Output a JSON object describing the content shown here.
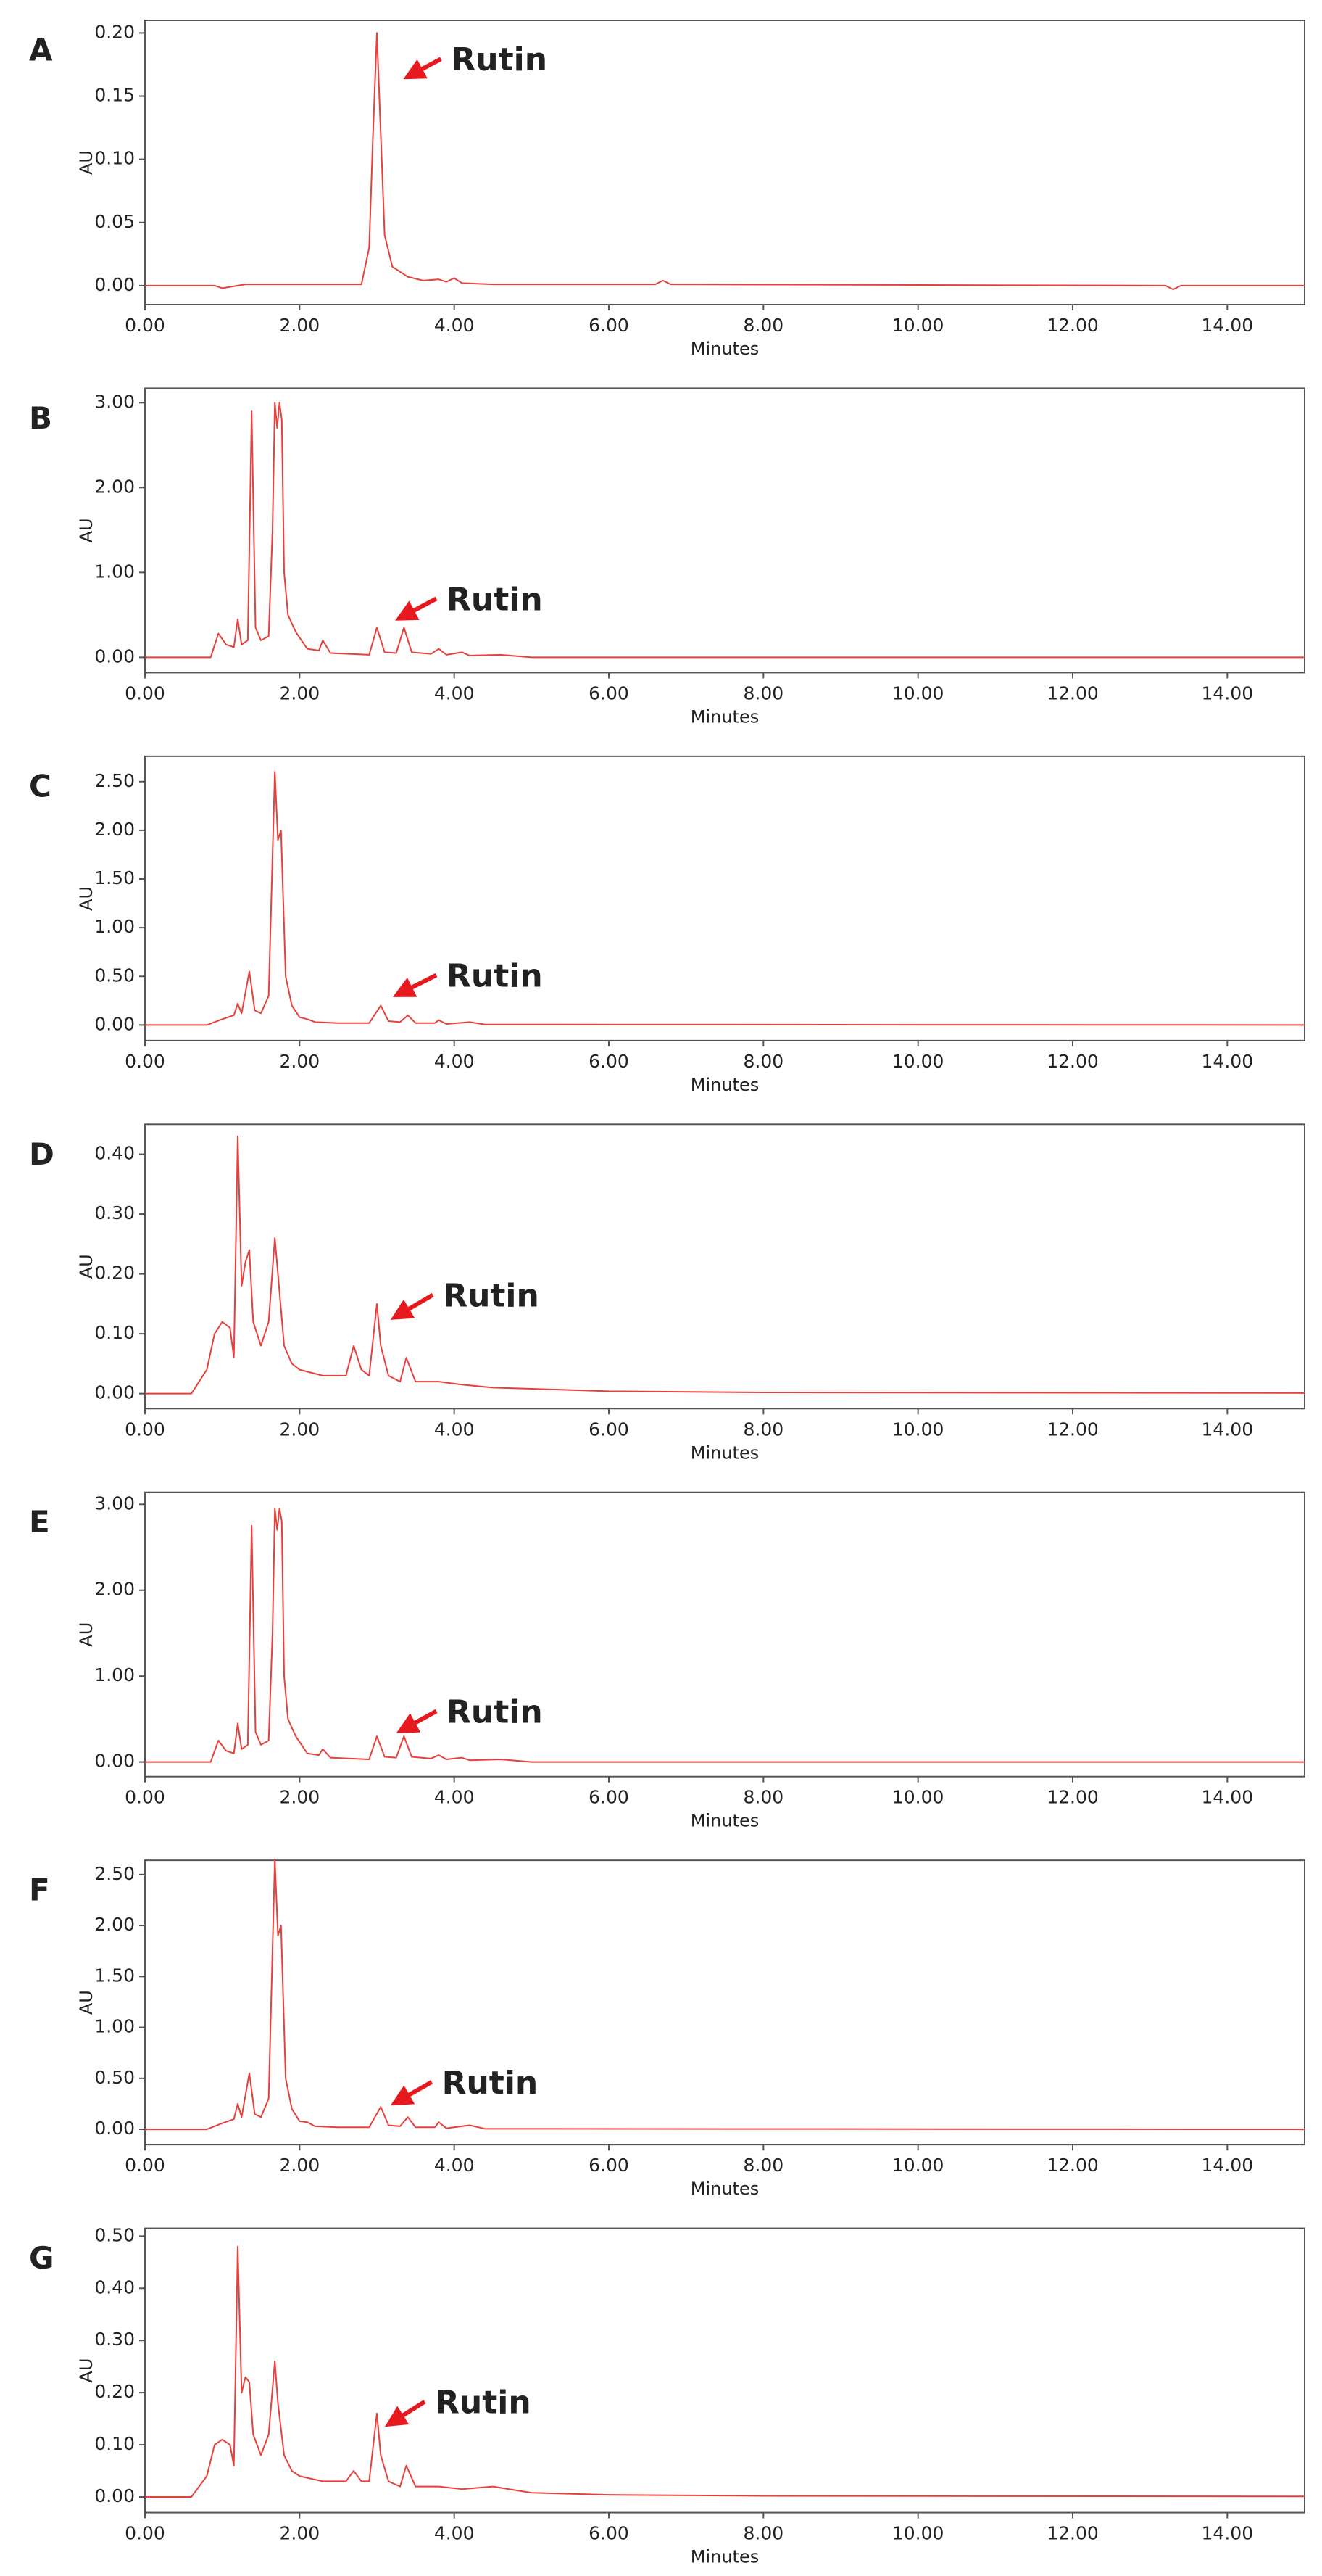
{
  "chart_data": [
    {
      "type": "line",
      "title": "A",
      "ylabel": "AU",
      "xlabel": "Minutes",
      "annotation": "Rutin",
      "color": "#e8413c",
      "xlim": [
        0,
        15
      ],
      "ylim": [
        -0.015,
        0.21
      ],
      "xticks": [
        {
          "value": 0,
          "label": "0.00"
        },
        {
          "value": 2,
          "label": "2.00"
        },
        {
          "value": 4,
          "label": "4.00"
        },
        {
          "value": 6,
          "label": "6.00"
        },
        {
          "value": 8,
          "label": "8.00"
        },
        {
          "value": 10,
          "label": "10.00"
        },
        {
          "value": 12,
          "label": "12.00"
        },
        {
          "value": 14,
          "label": "14.00"
        }
      ],
      "yticks": [
        {
          "value": 0,
          "label": "0.00"
        },
        {
          "value": 0.05,
          "label": "0.05"
        },
        {
          "value": 0.1,
          "label": "0.10"
        },
        {
          "value": 0.15,
          "label": "0.15"
        },
        {
          "value": 0.2,
          "label": "0.20"
        }
      ],
      "x": [
        0,
        0.9,
        1.0,
        1.2,
        1.3,
        2.8,
        2.9,
        2.95,
        3.0,
        3.05,
        3.1,
        3.2,
        3.4,
        3.6,
        3.8,
        3.9,
        4.0,
        4.1,
        4.5,
        6.6,
        6.7,
        6.8,
        13.2,
        13.3,
        13.4,
        15
      ],
      "values": [
        0,
        0,
        -0.002,
        0,
        0.001,
        0.001,
        0.03,
        0.12,
        0.2,
        0.12,
        0.04,
        0.015,
        0.007,
        0.004,
        0.005,
        0.003,
        0.006,
        0.002,
        0.001,
        0.001,
        0.004,
        0.001,
        0,
        -0.003,
        0,
        0
      ]
    },
    {
      "type": "line",
      "title": "B",
      "ylabel": "AU",
      "xlabel": "Minutes",
      "annotation": "Rutin",
      "color": "#e8413c",
      "xlim": [
        0,
        15
      ],
      "ylim": [
        -0.18,
        3.17
      ],
      "xticks": [
        {
          "value": 0,
          "label": "0.00"
        },
        {
          "value": 2,
          "label": "2.00"
        },
        {
          "value": 4,
          "label": "4.00"
        },
        {
          "value": 6,
          "label": "6.00"
        },
        {
          "value": 8,
          "label": "8.00"
        },
        {
          "value": 10,
          "label": "10.00"
        },
        {
          "value": 12,
          "label": "12.00"
        },
        {
          "value": 14,
          "label": "14.00"
        }
      ],
      "yticks": [
        {
          "value": 0,
          "label": "0.00"
        },
        {
          "value": 1,
          "label": "1.00"
        },
        {
          "value": 2,
          "label": "2.00"
        },
        {
          "value": 3,
          "label": "3.00"
        }
      ],
      "x": [
        0,
        0.85,
        0.95,
        1.05,
        1.15,
        1.2,
        1.25,
        1.33,
        1.38,
        1.43,
        1.5,
        1.6,
        1.65,
        1.68,
        1.71,
        1.74,
        1.77,
        1.8,
        1.85,
        1.95,
        2.1,
        2.25,
        2.3,
        2.4,
        2.9,
        3.0,
        3.1,
        3.25,
        3.35,
        3.45,
        3.7,
        3.8,
        3.9,
        4.1,
        4.2,
        4.6,
        5,
        15
      ],
      "values": [
        0,
        0,
        0.28,
        0.15,
        0.12,
        0.45,
        0.15,
        0.2,
        2.9,
        0.35,
        0.2,
        0.25,
        1.5,
        3.0,
        2.7,
        3.0,
        2.8,
        1.0,
        0.5,
        0.3,
        0.1,
        0.08,
        0.2,
        0.05,
        0.03,
        0.35,
        0.06,
        0.05,
        0.35,
        0.06,
        0.04,
        0.1,
        0.03,
        0.06,
        0.02,
        0.03,
        0,
        0
      ]
    },
    {
      "type": "line",
      "title": "C",
      "ylabel": "AU",
      "xlabel": "Minutes",
      "annotation": "Rutin",
      "color": "#e8413c",
      "xlim": [
        0,
        15
      ],
      "ylim": [
        -0.16,
        2.76
      ],
      "xticks": [
        {
          "value": 0,
          "label": "0.00"
        },
        {
          "value": 2,
          "label": "2.00"
        },
        {
          "value": 4,
          "label": "4.00"
        },
        {
          "value": 6,
          "label": "6.00"
        },
        {
          "value": 8,
          "label": "8.00"
        },
        {
          "value": 10,
          "label": "10.00"
        },
        {
          "value": 12,
          "label": "12.00"
        },
        {
          "value": 14,
          "label": "14.00"
        }
      ],
      "yticks": [
        {
          "value": 0,
          "label": "0.00"
        },
        {
          "value": 0.5,
          "label": "0.50"
        },
        {
          "value": 1,
          "label": "1.00"
        },
        {
          "value": 1.5,
          "label": "1.50"
        },
        {
          "value": 2,
          "label": "2.00"
        },
        {
          "value": 2.5,
          "label": "2.50"
        }
      ],
      "x": [
        0,
        0.8,
        1.0,
        1.15,
        1.2,
        1.25,
        1.35,
        1.42,
        1.5,
        1.6,
        1.68,
        1.72,
        1.76,
        1.82,
        1.9,
        2.0,
        2.1,
        2.2,
        2.5,
        2.9,
        3.05,
        3.15,
        3.3,
        3.4,
        3.5,
        3.75,
        3.8,
        3.9,
        4.2,
        4.4,
        15
      ],
      "values": [
        0,
        0,
        0.06,
        0.1,
        0.22,
        0.12,
        0.55,
        0.15,
        0.12,
        0.3,
        2.6,
        1.9,
        2.0,
        0.5,
        0.2,
        0.08,
        0.06,
        0.03,
        0.02,
        0.02,
        0.2,
        0.04,
        0.03,
        0.1,
        0.02,
        0.02,
        0.05,
        0.01,
        0.03,
        0.005,
        0
      ]
    },
    {
      "type": "line",
      "title": "D",
      "ylabel": "AU",
      "xlabel": "Minutes",
      "annotation": "Rutin",
      "color": "#e8413c",
      "xlim": [
        0,
        15
      ],
      "ylim": [
        -0.025,
        0.45
      ],
      "xticks": [
        {
          "value": 0,
          "label": "0.00"
        },
        {
          "value": 2,
          "label": "2.00"
        },
        {
          "value": 4,
          "label": "4.00"
        },
        {
          "value": 6,
          "label": "6.00"
        },
        {
          "value": 8,
          "label": "8.00"
        },
        {
          "value": 10,
          "label": "10.00"
        },
        {
          "value": 12,
          "label": "12.00"
        },
        {
          "value": 14,
          "label": "14.00"
        }
      ],
      "yticks": [
        {
          "value": 0,
          "label": "0.00"
        },
        {
          "value": 0.1,
          "label": "0.10"
        },
        {
          "value": 0.2,
          "label": "0.20"
        },
        {
          "value": 0.3,
          "label": "0.30"
        },
        {
          "value": 0.4,
          "label": "0.40"
        }
      ],
      "x": [
        0,
        0.6,
        0.8,
        0.9,
        1.0,
        1.1,
        1.15,
        1.2,
        1.25,
        1.3,
        1.35,
        1.4,
        1.5,
        1.6,
        1.68,
        1.72,
        1.8,
        1.9,
        2.0,
        2.3,
        2.6,
        2.7,
        2.8,
        2.9,
        3.0,
        3.05,
        3.15,
        3.3,
        3.38,
        3.5,
        3.8,
        4.1,
        4.5,
        5.0,
        6.0,
        8.0,
        15
      ],
      "values": [
        0,
        0,
        0.04,
        0.1,
        0.12,
        0.11,
        0.06,
        0.43,
        0.18,
        0.22,
        0.24,
        0.12,
        0.08,
        0.12,
        0.26,
        0.2,
        0.08,
        0.05,
        0.04,
        0.03,
        0.03,
        0.08,
        0.04,
        0.03,
        0.15,
        0.08,
        0.03,
        0.02,
        0.06,
        0.02,
        0.02,
        0.015,
        0.01,
        0.008,
        0.004,
        0.002,
        0.001
      ]
    },
    {
      "type": "line",
      "title": "E",
      "ylabel": "AU",
      "xlabel": "Minutes",
      "annotation": "Rutin",
      "color": "#e8413c",
      "xlim": [
        0,
        15
      ],
      "ylim": [
        -0.17,
        3.14
      ],
      "xticks": [
        {
          "value": 0,
          "label": "0.00"
        },
        {
          "value": 2,
          "label": "2.00"
        },
        {
          "value": 4,
          "label": "4.00"
        },
        {
          "value": 6,
          "label": "6.00"
        },
        {
          "value": 8,
          "label": "8.00"
        },
        {
          "value": 10,
          "label": "10.00"
        },
        {
          "value": 12,
          "label": "12.00"
        },
        {
          "value": 14,
          "label": "14.00"
        }
      ],
      "yticks": [
        {
          "value": 0,
          "label": "0.00"
        },
        {
          "value": 1,
          "label": "1.00"
        },
        {
          "value": 2,
          "label": "2.00"
        },
        {
          "value": 3,
          "label": "3.00"
        }
      ],
      "x": [
        0,
        0.85,
        0.95,
        1.05,
        1.15,
        1.2,
        1.25,
        1.33,
        1.38,
        1.43,
        1.5,
        1.6,
        1.65,
        1.68,
        1.71,
        1.74,
        1.77,
        1.8,
        1.85,
        1.95,
        2.1,
        2.25,
        2.3,
        2.4,
        2.9,
        3.0,
        3.1,
        3.25,
        3.35,
        3.45,
        3.7,
        3.8,
        3.9,
        4.1,
        4.2,
        4.6,
        5,
        15
      ],
      "values": [
        0,
        0,
        0.25,
        0.13,
        0.1,
        0.45,
        0.15,
        0.2,
        2.75,
        0.35,
        0.2,
        0.25,
        1.5,
        2.95,
        2.7,
        2.95,
        2.8,
        1.0,
        0.5,
        0.3,
        0.1,
        0.08,
        0.15,
        0.05,
        0.03,
        0.3,
        0.06,
        0.05,
        0.3,
        0.06,
        0.04,
        0.08,
        0.03,
        0.05,
        0.02,
        0.03,
        0,
        0
      ]
    },
    {
      "type": "line",
      "title": "F",
      "ylabel": "AU",
      "xlabel": "Minutes",
      "annotation": "Rutin",
      "color": "#e8413c",
      "xlim": [
        0,
        15
      ],
      "ylim": [
        -0.15,
        2.64
      ],
      "xticks": [
        {
          "value": 0,
          "label": "0.00"
        },
        {
          "value": 2,
          "label": "2.00"
        },
        {
          "value": 4,
          "label": "4.00"
        },
        {
          "value": 6,
          "label": "6.00"
        },
        {
          "value": 8,
          "label": "8.00"
        },
        {
          "value": 10,
          "label": "10.00"
        },
        {
          "value": 12,
          "label": "12.00"
        },
        {
          "value": 14,
          "label": "14.00"
        }
      ],
      "yticks": [
        {
          "value": 0,
          "label": "0.00"
        },
        {
          "value": 0.5,
          "label": "0.50"
        },
        {
          "value": 1,
          "label": "1.00"
        },
        {
          "value": 1.5,
          "label": "1.50"
        },
        {
          "value": 2,
          "label": "2.00"
        },
        {
          "value": 2.5,
          "label": "2.50"
        }
      ],
      "x": [
        0,
        0.8,
        1.0,
        1.15,
        1.2,
        1.25,
        1.35,
        1.42,
        1.5,
        1.6,
        1.68,
        1.72,
        1.76,
        1.82,
        1.9,
        2.0,
        2.1,
        2.2,
        2.5,
        2.9,
        3.05,
        3.15,
        3.3,
        3.4,
        3.5,
        3.75,
        3.8,
        3.9,
        4.2,
        4.4,
        15
      ],
      "values": [
        0,
        0,
        0.06,
        0.1,
        0.25,
        0.12,
        0.55,
        0.15,
        0.12,
        0.3,
        2.65,
        1.9,
        2.0,
        0.5,
        0.2,
        0.08,
        0.07,
        0.03,
        0.02,
        0.02,
        0.22,
        0.04,
        0.03,
        0.12,
        0.02,
        0.02,
        0.07,
        0.01,
        0.04,
        0.005,
        0
      ]
    },
    {
      "type": "line",
      "title": "G",
      "ylabel": "AU",
      "xlabel": "Minutes",
      "annotation": "Rutin",
      "color": "#e8413c",
      "xlim": [
        0,
        15
      ],
      "ylim": [
        -0.03,
        0.515
      ],
      "xticks": [
        {
          "value": 0,
          "label": "0.00"
        },
        {
          "value": 2,
          "label": "2.00"
        },
        {
          "value": 4,
          "label": "4.00"
        },
        {
          "value": 6,
          "label": "6.00"
        },
        {
          "value": 8,
          "label": "8.00"
        },
        {
          "value": 10,
          "label": "10.00"
        },
        {
          "value": 12,
          "label": "12.00"
        },
        {
          "value": 14,
          "label": "14.00"
        }
      ],
      "yticks": [
        {
          "value": 0,
          "label": "0.00"
        },
        {
          "value": 0.1,
          "label": "0.10"
        },
        {
          "value": 0.2,
          "label": "0.20"
        },
        {
          "value": 0.3,
          "label": "0.30"
        },
        {
          "value": 0.4,
          "label": "0.40"
        },
        {
          "value": 0.5,
          "label": "0.50"
        }
      ],
      "x": [
        0,
        0.6,
        0.8,
        0.9,
        1.0,
        1.1,
        1.15,
        1.2,
        1.25,
        1.3,
        1.35,
        1.4,
        1.5,
        1.6,
        1.68,
        1.72,
        1.8,
        1.9,
        2.0,
        2.3,
        2.6,
        2.7,
        2.8,
        2.9,
        3.0,
        3.05,
        3.15,
        3.3,
        3.38,
        3.5,
        3.8,
        4.1,
        4.5,
        5.0,
        6.0,
        8.0,
        15
      ],
      "values": [
        0,
        0,
        0.04,
        0.1,
        0.11,
        0.1,
        0.06,
        0.48,
        0.2,
        0.23,
        0.22,
        0.12,
        0.08,
        0.12,
        0.26,
        0.18,
        0.08,
        0.05,
        0.04,
        0.03,
        0.03,
        0.05,
        0.03,
        0.03,
        0.16,
        0.08,
        0.03,
        0.02,
        0.06,
        0.02,
        0.02,
        0.015,
        0.02,
        0.008,
        0.004,
        0.002,
        0.001
      ]
    }
  ]
}
